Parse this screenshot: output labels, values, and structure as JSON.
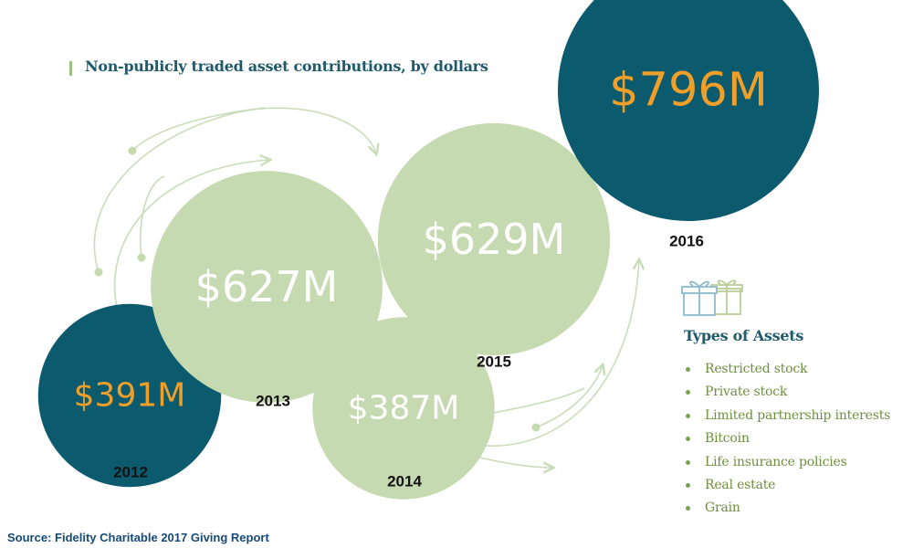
{
  "header": {
    "title": "Non-publicly traded asset contributions, by dollars"
  },
  "chart_data": {
    "type": "bubble",
    "title": "Non-publicly traded asset contributions, by dollars",
    "unit": "USD millions",
    "categories": [
      "2012",
      "2013",
      "2014",
      "2015",
      "2016"
    ],
    "values": [
      391,
      627,
      387,
      629,
      796
    ],
    "data_labels": [
      "$391M",
      "$627M",
      "$387M",
      "$629M",
      "$796M"
    ],
    "colors": [
      "#0c5a6e",
      "#c5dab1",
      "#c5dab1",
      "#c5dab1",
      "#0c5a6e"
    ],
    "label_colors": [
      "#f0a029",
      "#ffffff",
      "#ffffff",
      "#ffffff",
      "#f0a029"
    ],
    "legend": "right"
  },
  "legend": {
    "title": "Types of Assets",
    "items": [
      "Restricted stock",
      "Private stock",
      "Limited partnership interests",
      "Bitcoin",
      "Life insurance policies",
      "Real estate",
      "Grain"
    ]
  },
  "source": "Source: Fidelity Charitable 2017 Giving Report",
  "icons": {
    "gift": "gift-boxes-icon"
  }
}
